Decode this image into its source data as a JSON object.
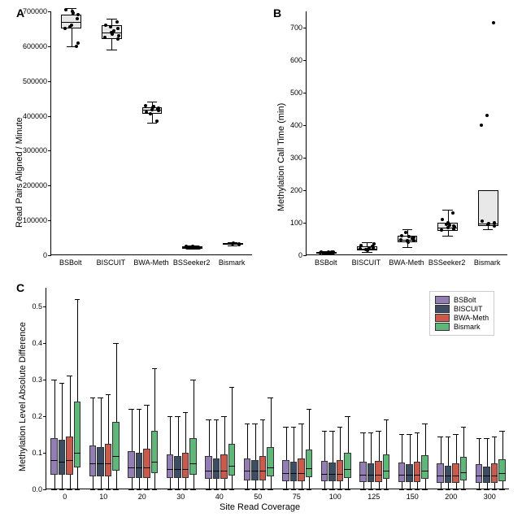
{
  "colors": {
    "bsbolt": "#937db5",
    "biscuit": "#3d4d63",
    "bwameth": "#c95a4c",
    "bismark": "#5fb87a",
    "box_fill_top": "#e8e8e8",
    "background": "#ffffff",
    "line": "#000000"
  },
  "panelA": {
    "label": "A",
    "ylabel": "Read Pairs Aligned / Minute",
    "categories": [
      "BSBolt",
      "BISCUIT",
      "BWA-Meth",
      "BSSeeker2",
      "Bismark"
    ],
    "ylim": [
      0,
      700000
    ],
    "ytick_step": 100000,
    "yticks": [
      "0",
      "100000",
      "200000",
      "300000",
      "400000",
      "500000",
      "600000",
      "700000"
    ],
    "boxes": [
      {
        "x": 0,
        "low": 600000,
        "q1": 650000,
        "med": 670000,
        "q3": 690000,
        "high": 710000,
        "points": [
          660000,
          680000,
          690000,
          700000,
          705000,
          650000,
          655000,
          600000,
          610000,
          695000
        ]
      },
      {
        "x": 1,
        "low": 590000,
        "q1": 620000,
        "med": 640000,
        "q3": 660000,
        "high": 680000,
        "points": [
          640000,
          650000,
          620000,
          635000,
          660000,
          625000,
          655000,
          670000,
          630000,
          645000
        ]
      },
      {
        "x": 2,
        "low": 380000,
        "q1": 405000,
        "med": 418000,
        "q3": 425000,
        "high": 440000,
        "points": [
          418000,
          420000,
          415000,
          425000,
          410000,
          430000,
          405000,
          385000,
          422000,
          428000
        ]
      },
      {
        "x": 3,
        "low": 18000,
        "q1": 20000,
        "med": 22000,
        "q3": 25000,
        "high": 28000,
        "points": [
          22000,
          23000,
          21000,
          25000,
          20000,
          26000,
          24000,
          22500,
          21500
        ]
      },
      {
        "x": 4,
        "low": 28000,
        "q1": 30000,
        "med": 32000,
        "q3": 35000,
        "high": 38000,
        "points": [
          32000,
          33000,
          31000,
          34000
        ]
      }
    ]
  },
  "panelB": {
    "label": "B",
    "ylabel": "Methylation Call Time (min)",
    "categories": [
      "BSBolt",
      "BISCUIT",
      "BWA-Meth",
      "BSSeeker2",
      "Bismark"
    ],
    "ylim": [
      0,
      750
    ],
    "ytick_step": 100,
    "yticks": [
      "0",
      "100",
      "200",
      "300",
      "400",
      "500",
      "600",
      "700"
    ],
    "boxes": [
      {
        "x": 0,
        "low": 4,
        "q1": 6,
        "med": 8,
        "q3": 10,
        "high": 12,
        "points": [
          7,
          8,
          9,
          6,
          10,
          8,
          7,
          9,
          8,
          10
        ]
      },
      {
        "x": 1,
        "low": 10,
        "q1": 15,
        "med": 20,
        "q3": 28,
        "high": 40,
        "points": [
          18,
          22,
          25,
          15,
          30,
          20,
          17,
          28,
          35,
          23
        ]
      },
      {
        "x": 2,
        "low": 25,
        "q1": 40,
        "med": 48,
        "q3": 60,
        "high": 80,
        "points": [
          45,
          50,
          55,
          40,
          60,
          48,
          70,
          52,
          44,
          58
        ]
      },
      {
        "x": 3,
        "low": 60,
        "q1": 75,
        "med": 85,
        "q3": 100,
        "high": 140,
        "points": [
          85,
          90,
          80,
          100,
          110,
          78,
          95,
          130,
          88,
          92
        ]
      },
      {
        "x": 4,
        "low": 80,
        "q1": 90,
        "med": 98,
        "q3": 200,
        "high": 200,
        "points": [
          95,
          90,
          100,
          98,
          105,
          400,
          430,
          715
        ]
      }
    ]
  },
  "panelC": {
    "label": "C",
    "ylabel": "Methylation Level Absolute Difference",
    "xlabel": "Site Read Coverage",
    "categories": [
      "0",
      "10",
      "20",
      "30",
      "40",
      "50",
      "75",
      "100",
      "125",
      "150",
      "200",
      "300"
    ],
    "ylim": [
      0,
      0.55
    ],
    "yticks": [
      "0.0",
      "0.1",
      "0.2",
      "0.3",
      "0.4",
      "0.5"
    ],
    "series": [
      "BSBolt",
      "BISCUIT",
      "BWA-Meth",
      "Bismark"
    ],
    "series_colors": [
      "#937db5",
      "#3d4d63",
      "#c95a4c",
      "#5fb87a"
    ],
    "data": [
      [
        {
          "low": 0,
          "q1": 0.04,
          "med": 0.08,
          "q3": 0.14,
          "high": 0.3
        },
        {
          "low": 0,
          "q1": 0.04,
          "med": 0.075,
          "q3": 0.135,
          "high": 0.29
        },
        {
          "low": 0,
          "q1": 0.04,
          "med": 0.08,
          "q3": 0.145,
          "high": 0.31
        },
        {
          "low": 0,
          "q1": 0.06,
          "med": 0.1,
          "q3": 0.24,
          "high": 0.52
        }
      ],
      [
        {
          "low": 0,
          "q1": 0.035,
          "med": 0.07,
          "q3": 0.12,
          "high": 0.25
        },
        {
          "low": 0,
          "q1": 0.035,
          "med": 0.07,
          "q3": 0.115,
          "high": 0.25
        },
        {
          "low": 0,
          "q1": 0.035,
          "med": 0.07,
          "q3": 0.125,
          "high": 0.26
        },
        {
          "low": 0,
          "q1": 0.05,
          "med": 0.09,
          "q3": 0.185,
          "high": 0.4
        }
      ],
      [
        {
          "low": 0,
          "q1": 0.03,
          "med": 0.06,
          "q3": 0.105,
          "high": 0.22
        },
        {
          "low": 0,
          "q1": 0.03,
          "med": 0.06,
          "q3": 0.1,
          "high": 0.22
        },
        {
          "low": 0,
          "q1": 0.03,
          "med": 0.06,
          "q3": 0.11,
          "high": 0.23
        },
        {
          "low": 0,
          "q1": 0.045,
          "med": 0.075,
          "q3": 0.16,
          "high": 0.33
        }
      ],
      [
        {
          "low": 0,
          "q1": 0.03,
          "med": 0.055,
          "q3": 0.095,
          "high": 0.2
        },
        {
          "low": 0,
          "q1": 0.03,
          "med": 0.055,
          "q3": 0.09,
          "high": 0.2
        },
        {
          "low": 0,
          "q1": 0.03,
          "med": 0.055,
          "q3": 0.1,
          "high": 0.21
        },
        {
          "low": 0,
          "q1": 0.04,
          "med": 0.07,
          "q3": 0.14,
          "high": 0.3
        }
      ],
      [
        {
          "low": 0,
          "q1": 0.028,
          "med": 0.05,
          "q3": 0.09,
          "high": 0.19
        },
        {
          "low": 0,
          "q1": 0.028,
          "med": 0.05,
          "q3": 0.085,
          "high": 0.19
        },
        {
          "low": 0,
          "q1": 0.028,
          "med": 0.05,
          "q3": 0.095,
          "high": 0.2
        },
        {
          "low": 0,
          "q1": 0.038,
          "med": 0.065,
          "q3": 0.125,
          "high": 0.28
        }
      ],
      [
        {
          "low": 0,
          "q1": 0.025,
          "med": 0.05,
          "q3": 0.085,
          "high": 0.18
        },
        {
          "low": 0,
          "q1": 0.025,
          "med": 0.05,
          "q3": 0.08,
          "high": 0.18
        },
        {
          "low": 0,
          "q1": 0.025,
          "med": 0.05,
          "q3": 0.09,
          "high": 0.19
        },
        {
          "low": 0,
          "q1": 0.035,
          "med": 0.06,
          "q3": 0.115,
          "high": 0.25
        }
      ],
      [
        {
          "low": 0,
          "q1": 0.023,
          "med": 0.045,
          "q3": 0.08,
          "high": 0.17
        },
        {
          "low": 0,
          "q1": 0.023,
          "med": 0.045,
          "q3": 0.075,
          "high": 0.17
        },
        {
          "low": 0,
          "q1": 0.023,
          "med": 0.045,
          "q3": 0.085,
          "high": 0.18
        },
        {
          "low": 0,
          "q1": 0.033,
          "med": 0.058,
          "q3": 0.108,
          "high": 0.22
        }
      ],
      [
        {
          "low": 0,
          "q1": 0.022,
          "med": 0.043,
          "q3": 0.078,
          "high": 0.16
        },
        {
          "low": 0,
          "q1": 0.022,
          "med": 0.043,
          "q3": 0.073,
          "high": 0.16
        },
        {
          "low": 0,
          "q1": 0.022,
          "med": 0.043,
          "q3": 0.08,
          "high": 0.17
        },
        {
          "low": 0,
          "q1": 0.03,
          "med": 0.055,
          "q3": 0.1,
          "high": 0.2
        }
      ],
      [
        {
          "low": 0,
          "q1": 0.02,
          "med": 0.04,
          "q3": 0.075,
          "high": 0.155
        },
        {
          "low": 0,
          "q1": 0.02,
          "med": 0.04,
          "q3": 0.07,
          "high": 0.155
        },
        {
          "low": 0,
          "q1": 0.02,
          "med": 0.04,
          "q3": 0.078,
          "high": 0.16
        },
        {
          "low": 0,
          "q1": 0.028,
          "med": 0.05,
          "q3": 0.095,
          "high": 0.19
        }
      ],
      [
        {
          "low": 0,
          "q1": 0.02,
          "med": 0.04,
          "q3": 0.073,
          "high": 0.15
        },
        {
          "low": 0,
          "q1": 0.02,
          "med": 0.04,
          "q3": 0.068,
          "high": 0.15
        },
        {
          "low": 0,
          "q1": 0.02,
          "med": 0.04,
          "q3": 0.075,
          "high": 0.155
        },
        {
          "low": 0,
          "q1": 0.028,
          "med": 0.05,
          "q3": 0.093,
          "high": 0.18
        }
      ],
      [
        {
          "low": 0,
          "q1": 0.018,
          "med": 0.038,
          "q3": 0.07,
          "high": 0.145
        },
        {
          "low": 0,
          "q1": 0.018,
          "med": 0.038,
          "q3": 0.065,
          "high": 0.145
        },
        {
          "low": 0,
          "q1": 0.018,
          "med": 0.038,
          "q3": 0.072,
          "high": 0.15
        },
        {
          "low": 0,
          "q1": 0.025,
          "med": 0.047,
          "q3": 0.088,
          "high": 0.17
        }
      ],
      [
        {
          "low": 0,
          "q1": 0.018,
          "med": 0.037,
          "q3": 0.068,
          "high": 0.14
        },
        {
          "low": 0,
          "q1": 0.018,
          "med": 0.037,
          "q3": 0.063,
          "high": 0.14
        },
        {
          "low": 0,
          "q1": 0.018,
          "med": 0.037,
          "q3": 0.07,
          "high": 0.145
        },
        {
          "low": 0,
          "q1": 0.023,
          "med": 0.045,
          "q3": 0.082,
          "high": 0.16
        }
      ]
    ]
  },
  "legend": {
    "items": [
      {
        "label": "BSBolt",
        "color": "#937db5"
      },
      {
        "label": "BISCUIT",
        "color": "#3d4d63"
      },
      {
        "label": "BWA-Meth",
        "color": "#c95a4c"
      },
      {
        "label": "Bismark",
        "color": "#5fb87a"
      }
    ]
  }
}
